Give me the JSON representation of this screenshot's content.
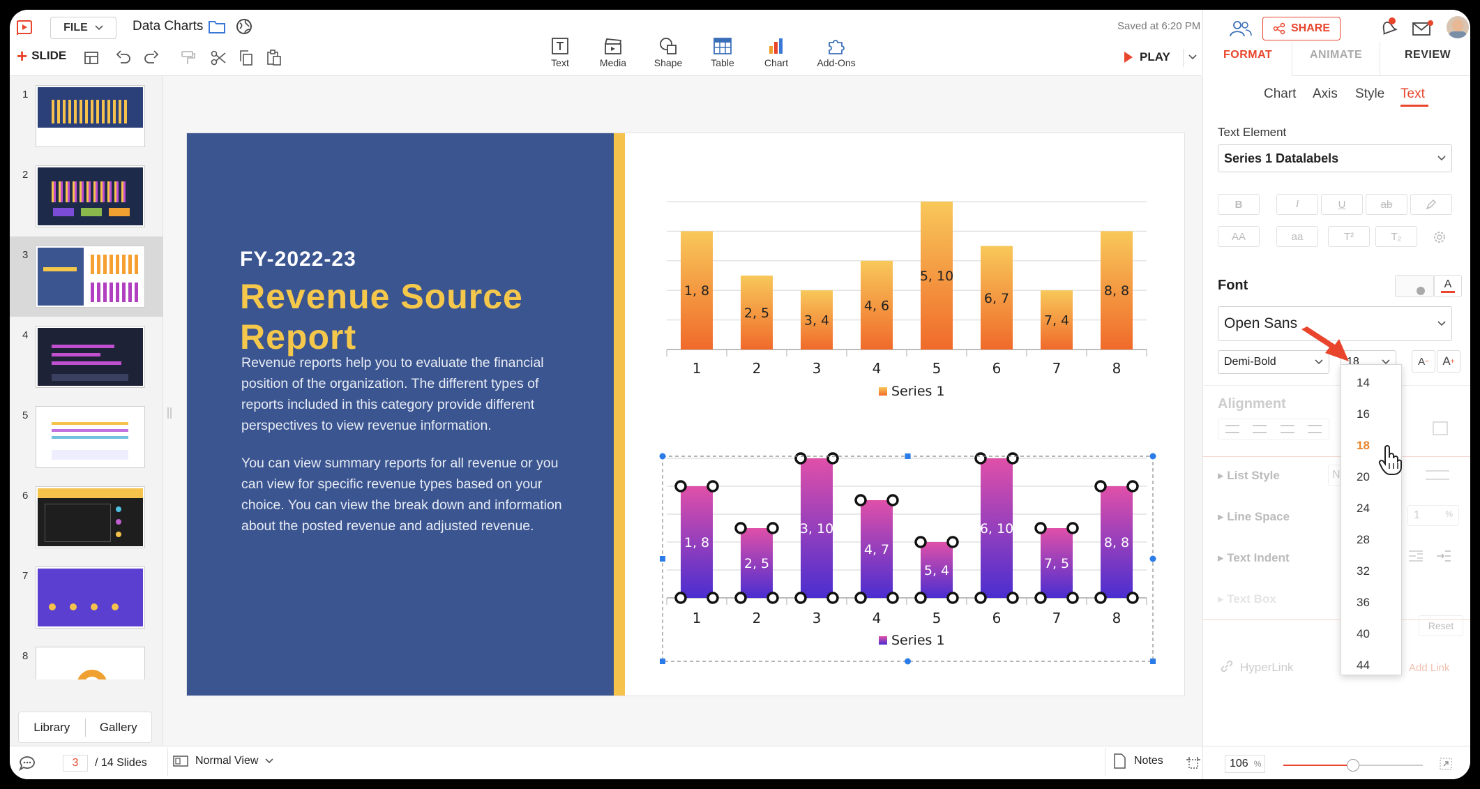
{
  "app": {
    "file_label": "FILE",
    "doc_title": "Data Charts",
    "saved_status": "Saved at 6:20 PM",
    "share_label": "SHARE",
    "slide_label": "SLIDE",
    "play_label": "PLAY"
  },
  "insert_tools": [
    {
      "label": "Text",
      "icon": "text-box-icon"
    },
    {
      "label": "Media",
      "icon": "media-clapper-icon"
    },
    {
      "label": "Shape",
      "icon": "shape-icon"
    },
    {
      "label": "Table",
      "icon": "table-icon"
    },
    {
      "label": "Chart",
      "icon": "chart-icon"
    },
    {
      "label": "Add-Ons",
      "icon": "puzzle-icon"
    }
  ],
  "panel": {
    "tabs": [
      "FORMAT",
      "ANIMATE",
      "REVIEW"
    ],
    "active_tab": "FORMAT",
    "sub_tabs": [
      "Chart",
      "Axis",
      "Style",
      "Text"
    ],
    "active_sub_tab": "Text",
    "text_element_label": "Text Element",
    "text_element_value": "Series 1 Datalabels",
    "font_label": "Font",
    "font_family_value": "Open Sans",
    "font_weight_value": "Demi-Bold",
    "font_size_value": "18",
    "font_size_options": [
      "14",
      "16",
      "18",
      "20",
      "24",
      "28",
      "32",
      "36",
      "40",
      "44"
    ],
    "font_size_selected": "18",
    "alignment_label": "Alignment",
    "list_style_label": "List Style",
    "list_style_value": "No",
    "line_space_label": "Line Space",
    "line_space_value": "1",
    "line_space_unit": "%",
    "text_indent_label": "Text Indent",
    "text_box_label": "Text Box",
    "reset_label": "Reset",
    "hyperlink_label": "HyperLink",
    "add_link_label": "Add Link",
    "format_buttons": {
      "bold": "B",
      "italic": "I",
      "underline": "U",
      "strike": "ab",
      "case_upper": "AA",
      "case_lower": "aa",
      "superscript": "T²",
      "subscript": "T₂"
    }
  },
  "sidebar": {
    "slides": [
      {
        "num": "1"
      },
      {
        "num": "2"
      },
      {
        "num": "3"
      },
      {
        "num": "4"
      },
      {
        "num": "5"
      },
      {
        "num": "6"
      },
      {
        "num": "7"
      },
      {
        "num": "8"
      }
    ],
    "selected": "3",
    "library_label": "Library",
    "gallery_label": "Gallery"
  },
  "bottom": {
    "current_slide": "3",
    "total_slides": "/ 14 Slides",
    "view_label": "Normal View",
    "notes_label": "Notes",
    "zoom_value": "106",
    "zoom_unit": "%",
    "zoom_slider_fraction": 0.5
  },
  "slide": {
    "subtitle": "FY-2022-23",
    "title": "Revenue Source Report",
    "paragraph1": "Revenue reports help you to evaluate the financial position of the organization. The different types of reports included in this category provide different perspectives to view revenue information.",
    "paragraph2": "You can view summary reports for all revenue or you can view for specific revenue types based on your choice. You can view the break down and information about the posted revenue and adjusted revenue."
  },
  "chart_data": [
    {
      "type": "bar",
      "categories": [
        "1",
        "2",
        "3",
        "4",
        "5",
        "6",
        "7",
        "8"
      ],
      "series": [
        {
          "name": "Series 1",
          "values": [
            8,
            5,
            4,
            6,
            10,
            7,
            4,
            8
          ]
        }
      ],
      "data_labels": [
        "1, 8",
        "2, 5",
        "3, 4",
        "4, 6",
        "5, 10",
        "6, 7",
        "7, 4",
        "8, 8"
      ],
      "ylim": [
        0,
        10
      ],
      "grid": true,
      "legend": "bottom",
      "colors": {
        "top": "#f8c85a",
        "bottom": "#f06a2a"
      }
    },
    {
      "type": "bar",
      "categories": [
        "1",
        "2",
        "3",
        "4",
        "5",
        "6",
        "7",
        "8"
      ],
      "series": [
        {
          "name": "Series 1",
          "values": [
            8,
            5,
            10,
            7,
            4,
            10,
            5,
            8
          ]
        }
      ],
      "data_labels": [
        "1, 8",
        "2, 5",
        "3, 10",
        "4, 7",
        "5, 4",
        "6, 10",
        "7, 5",
        "8, 8"
      ],
      "ylim": [
        0,
        10
      ],
      "grid": true,
      "legend": "bottom",
      "colors": {
        "top": "#e050a8",
        "bottom": "#4a2ed0"
      }
    }
  ]
}
